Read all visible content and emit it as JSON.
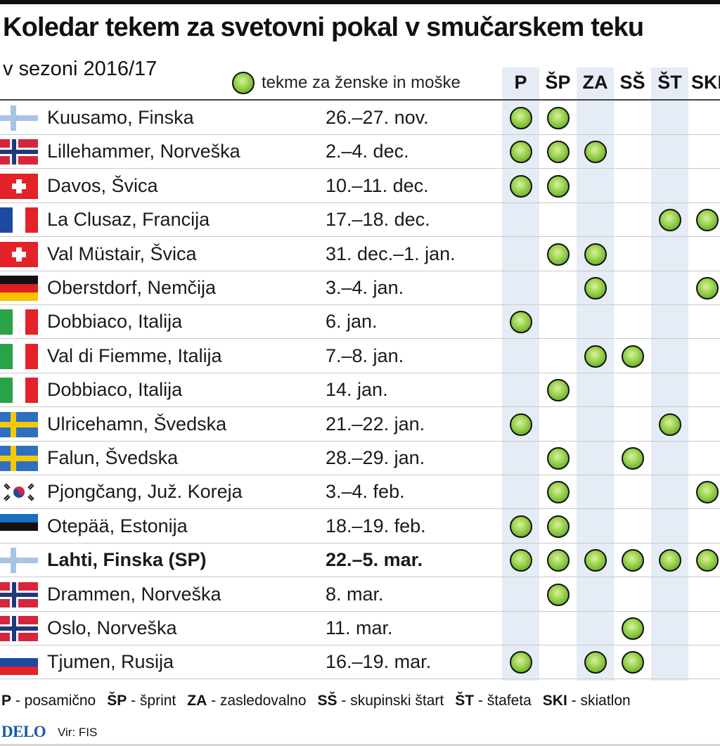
{
  "title": "Koledar tekem za svetovni pokal v smučarskem teku",
  "subtitle": "v sezoni 2016/17",
  "legend": {
    "label": "tekme za ženske in moške"
  },
  "columns": [
    "P",
    "ŠP",
    "ZA",
    "SŠ",
    "ŠT",
    "SKI"
  ],
  "rows": [
    {
      "flag": "finland",
      "city": "Kuusamo, Finska",
      "date": "26.–27. nov.",
      "events": [
        1,
        1,
        0,
        0,
        0,
        0
      ],
      "bold": false
    },
    {
      "flag": "norway",
      "city": "Lillehammer, Norveška",
      "date": "2.–4. dec.",
      "events": [
        1,
        1,
        1,
        0,
        0,
        0
      ],
      "bold": false
    },
    {
      "flag": "switzerland",
      "city": "Davos, Švica",
      "date": "10.–11. dec.",
      "events": [
        1,
        1,
        0,
        0,
        0,
        0
      ],
      "bold": false
    },
    {
      "flag": "france",
      "city": "La Clusaz, Francija",
      "date": "17.–18. dec.",
      "events": [
        0,
        0,
        0,
        0,
        1,
        1
      ],
      "bold": false
    },
    {
      "flag": "switzerland",
      "city": "Val Müstair, Švica",
      "date": "31. dec.–1. jan.",
      "events": [
        0,
        1,
        1,
        0,
        0,
        0
      ],
      "bold": false
    },
    {
      "flag": "germany",
      "city": "Oberstdorf, Nemčija",
      "date": "3.–4. jan.",
      "events": [
        0,
        0,
        1,
        0,
        0,
        1
      ],
      "bold": false
    },
    {
      "flag": "italy",
      "city": "Dobbiaco, Italija",
      "date": "6. jan.",
      "events": [
        1,
        0,
        0,
        0,
        0,
        0
      ],
      "bold": false
    },
    {
      "flag": "italy",
      "city": "Val di Fiemme, Italija",
      "date": "7.–8. jan.",
      "events": [
        0,
        0,
        1,
        1,
        0,
        0
      ],
      "bold": false
    },
    {
      "flag": "italy",
      "city": "Dobbiaco, Italija",
      "date": "14. jan.",
      "events": [
        0,
        1,
        0,
        0,
        0,
        0
      ],
      "bold": false
    },
    {
      "flag": "sweden",
      "city": "Ulricehamn, Švedska",
      "date": "21.–22. jan.",
      "events": [
        1,
        0,
        0,
        0,
        1,
        0
      ],
      "bold": false
    },
    {
      "flag": "sweden",
      "city": "Falun, Švedska",
      "date": "28.–29. jan.",
      "events": [
        0,
        1,
        0,
        1,
        0,
        0
      ],
      "bold": false
    },
    {
      "flag": "south-korea",
      "city": "Pjongčang, Juž. Koreja",
      "date": "3.–4. feb.",
      "events": [
        0,
        1,
        0,
        0,
        0,
        1
      ],
      "bold": false
    },
    {
      "flag": "estonia",
      "city": "Otepää, Estonija",
      "date": "18.–19. feb.",
      "events": [
        1,
        1,
        0,
        0,
        0,
        0
      ],
      "bold": false
    },
    {
      "flag": "finland",
      "city": "Lahti, Finska (SP)",
      "date": "22.–5. mar.",
      "events": [
        1,
        1,
        1,
        1,
        1,
        1
      ],
      "bold": true
    },
    {
      "flag": "norway",
      "city": "Drammen, Norveška",
      "date": "8. mar.",
      "events": [
        0,
        1,
        0,
        0,
        0,
        0
      ],
      "bold": false
    },
    {
      "flag": "norway",
      "city": "Oslo, Norveška",
      "date": "11. mar.",
      "events": [
        0,
        0,
        0,
        1,
        0,
        0
      ],
      "bold": false
    },
    {
      "flag": "russia",
      "city": "Tjumen, Rusija",
      "date": "16.–19. mar.",
      "events": [
        1,
        0,
        1,
        1,
        0,
        0
      ],
      "bold": false
    }
  ],
  "abbreviations": [
    {
      "code": "P",
      "text": " - posamično"
    },
    {
      "code": "ŠP",
      "text": " - šprint"
    },
    {
      "code": "ZA",
      "text": " - zasledovalno"
    },
    {
      "code": "SŠ",
      "text": " - skupinski štart"
    },
    {
      "code": "ŠT",
      "text": " - štafeta"
    },
    {
      "code": "SKI",
      "text": " - skiatlon"
    }
  ],
  "footer": {
    "logo": "DELO",
    "source": "Vir: FIS"
  },
  "colors": {
    "dot": "#7cc03a",
    "band": "#e6ecf5",
    "logo": "#1a5aa5"
  }
}
